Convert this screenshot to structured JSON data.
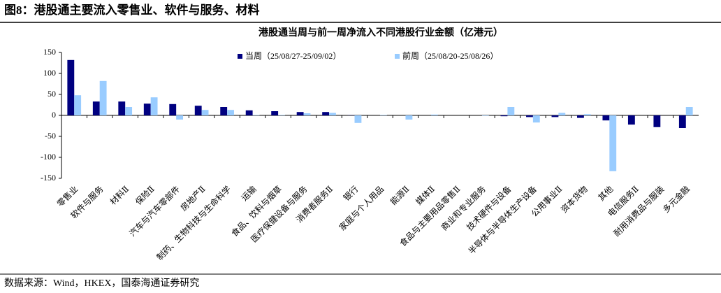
{
  "figure_title": "图8：港股通主要流入零售业、软件与服务、材料",
  "source": "数据来源：Wind，HKEX，国泰海通证券研究",
  "chart_data": {
    "type": "bar",
    "title": "港股通当周与前一周净流入不同港股行业金额（亿港元）",
    "categories": [
      "零售业",
      "软件与服务",
      "材料Ⅱ",
      "保险Ⅱ",
      "汽车与汽车零部件",
      "房地产Ⅱ",
      "制药、生物科技与生命科学",
      "运输",
      "食品、饮料与烟草",
      "医疗保健设备与服务",
      "消费者服务Ⅱ",
      "银行",
      "家庭与个人用品",
      "能源Ⅱ",
      "媒体Ⅱ",
      "食品与主要用品零售Ⅱ",
      "商业和专业服务",
      "技术硬件与设备",
      "半导体与半导体生产设备",
      "公用事业Ⅱ",
      "资本货物",
      "其他",
      "电信服务Ⅱ",
      "耐用消费品与服装",
      "多元金融"
    ],
    "series": [
      {
        "name": "当周（25/08/27-25/09/02）",
        "color": "#000080",
        "values": [
          132,
          33,
          33,
          28,
          27,
          23,
          20,
          12,
          10,
          8,
          8,
          0.5,
          0,
          0,
          0,
          0,
          0,
          -2,
          -4,
          -4,
          -6,
          -12,
          -22,
          -28,
          -30
        ]
      },
      {
        "name": "前周（25/08/20-25/08/26）",
        "color": "#99ccff",
        "values": [
          48,
          82,
          20,
          43,
          -10,
          13,
          13,
          1,
          1,
          5,
          6,
          -18,
          1,
          -10,
          2,
          0,
          -1,
          20,
          -17,
          6,
          3,
          -133,
          0,
          0,
          20
        ]
      }
    ],
    "ylim": [
      -150,
      150
    ],
    "yticks": [
      -150,
      -100,
      -50,
      0,
      50,
      100,
      150
    ],
    "grid": false,
    "legend": "top"
  }
}
